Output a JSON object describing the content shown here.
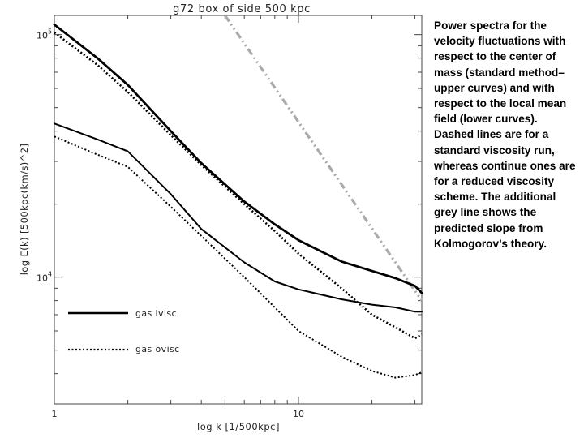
{
  "caption": "Power spectra for the velocity fluctuations with respect to the center of mass (standard method–upper curves) and with respect to the local mean field (lower curves). Dashed lines are for a standard viscosity run, whereas continue ones are for a reduced viscosity scheme. The additional grey line shows the predicted slope from Kolmogorov’s theory.",
  "chart_data": {
    "type": "line",
    "title": "g72 box of side 500 kpc",
    "xlabel": "log k [1/500kpc]",
    "ylabel": "log E(k) [500kpc(km/s)^2]",
    "xscale": "log",
    "yscale": "log",
    "xlim": [
      1,
      32
    ],
    "ylim": [
      3000,
      120000
    ],
    "x_ticks": [
      {
        "value": 1,
        "label": "1"
      },
      {
        "value": 10,
        "label": "10"
      }
    ],
    "y_ticks": [
      {
        "value": 10000,
        "label": "10",
        "exp": "4"
      },
      {
        "value": 100000,
        "label": "10",
        "exp": "5"
      }
    ],
    "legend": [
      {
        "label": "gas lvisc",
        "style": "solid"
      },
      {
        "label": "gas ovisc",
        "style": "dotted"
      }
    ],
    "series": [
      {
        "name": "gas lvisc",
        "group": "upper",
        "style": "solid",
        "color": "#000000",
        "x": [
          1,
          1.5,
          2,
          3,
          4,
          6,
          8,
          10,
          15,
          20,
          25,
          30,
          32
        ],
        "y": [
          110000,
          80000,
          62000,
          40000,
          29500,
          20500,
          16500,
          14200,
          11600,
          10600,
          9900,
          9200,
          8600
        ]
      },
      {
        "name": "gas ovisc",
        "group": "upper",
        "style": "dotted",
        "color": "#000000",
        "x": [
          1,
          1.5,
          2,
          3,
          4,
          6,
          8,
          10,
          15,
          20,
          25,
          30,
          32
        ],
        "y": [
          102000,
          75000,
          58000,
          38500,
          29000,
          20000,
          15500,
          12500,
          9000,
          7000,
          6200,
          5600,
          5800
        ]
      },
      {
        "name": "gas lvisc",
        "group": "lower",
        "style": "solid",
        "color": "#000000",
        "x": [
          1,
          1.5,
          2,
          3,
          4,
          6,
          8,
          10,
          15,
          20,
          25,
          30,
          32
        ],
        "y": [
          43000,
          37000,
          33000,
          22000,
          15800,
          11500,
          9600,
          8900,
          8100,
          7700,
          7500,
          7200,
          7200
        ]
      },
      {
        "name": "gas ovisc",
        "group": "lower",
        "style": "dotted",
        "color": "#000000",
        "x": [
          1,
          1.5,
          2,
          3,
          4,
          6,
          8,
          10,
          15,
          20,
          25,
          30,
          32
        ],
        "y": [
          38000,
          32000,
          28500,
          19500,
          14800,
          10000,
          7500,
          6000,
          4700,
          4100,
          3850,
          3950,
          4050
        ]
      }
    ],
    "reference_line": {
      "style": "dash-dot",
      "color": "#aaaaaa",
      "x": [
        5,
        32
      ],
      "y": [
        120000,
        8000
      ]
    }
  }
}
